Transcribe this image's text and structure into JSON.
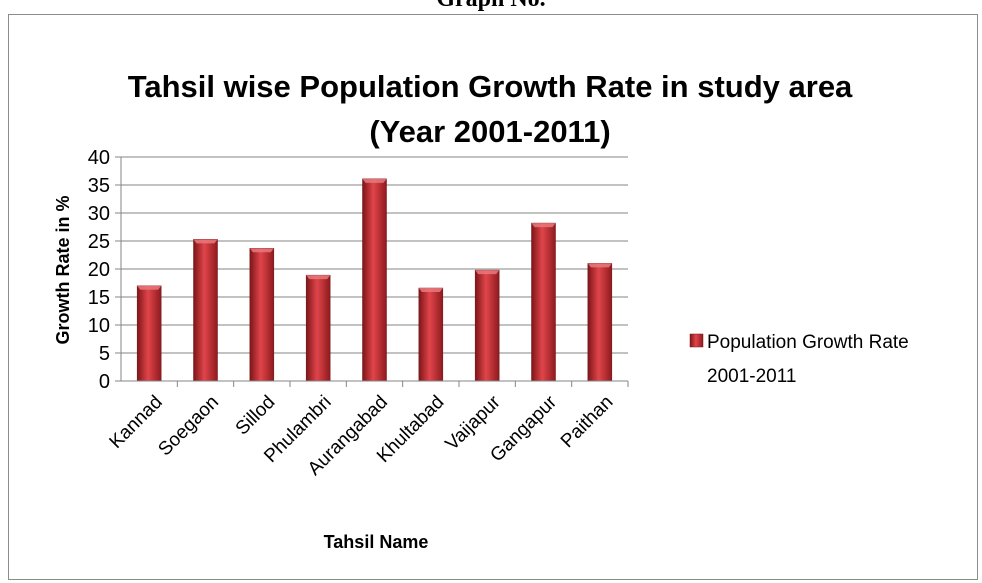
{
  "heading": "Graph No.",
  "chart_data": {
    "type": "bar",
    "title": [
      "Tahsil  wise Population Growth Rate in study area",
      "(Year 2001-2011)"
    ],
    "xlabel": "Tahsil Name",
    "ylabel": "Growth  Rate in %",
    "categories": [
      "Kannad",
      "Soegaon",
      "Sillod",
      "Phulambri",
      "Aurangabad",
      "Khultabad",
      "Vaijapur",
      "Gangapur",
      "Paithan"
    ],
    "series": [
      {
        "name": [
          "Population Growth Rate",
          "2001-2011"
        ],
        "values": [
          17.0,
          25.3,
          23.7,
          18.9,
          36.1,
          16.6,
          19.8,
          28.2,
          21.0
        ]
      }
    ],
    "ylim": [
      0,
      40
    ],
    "yticks": [
      0,
      5,
      10,
      15,
      20,
      25,
      30,
      35,
      40
    ],
    "grid": true,
    "legend_position": "right",
    "bar_color": "#c0282d"
  }
}
